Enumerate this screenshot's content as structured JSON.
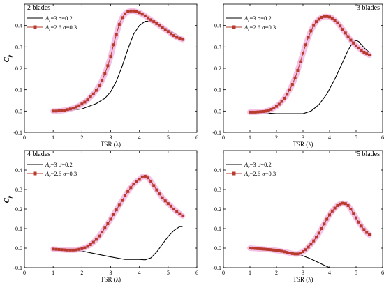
{
  "chart_data": [
    {
      "type": "line",
      "title": "2 blades",
      "xlabel": "TSR (λ)",
      "ylabel": "Cp",
      "xlim": [
        0,
        6
      ],
      "ylim": [
        -0.1,
        0.5
      ],
      "xticks": [
        "0",
        "1",
        "2",
        "3",
        "4",
        "5",
        "6"
      ],
      "yticks": [
        "-0.1",
        "0.0",
        "0.1",
        "0.2",
        "0.3",
        "0.4"
      ],
      "legend_position": "top-left",
      "series": [
        {
          "name": "Ar=3 σ=0.2",
          "color": "#000000",
          "marker": "none",
          "x": [
            1.0,
            1.5,
            2.0,
            2.5,
            2.8,
            3.0,
            3.2,
            3.4,
            3.6,
            3.8,
            4.0,
            4.2,
            4.4,
            4.6,
            4.8,
            5.0,
            5.2,
            5.5
          ],
          "y": [
            0.0,
            0.002,
            0.01,
            0.035,
            0.06,
            0.09,
            0.14,
            0.21,
            0.29,
            0.36,
            0.4,
            0.42,
            0.42,
            0.41,
            0.395,
            0.38,
            0.365,
            0.34
          ]
        },
        {
          "name": "Ar=2.6 σ=0.3",
          "color": "#b83a2c",
          "marker": "square",
          "x": [
            1.0,
            1.1,
            1.2,
            1.3,
            1.4,
            1.5,
            1.6,
            1.7,
            1.8,
            1.9,
            2.0,
            2.1,
            2.2,
            2.3,
            2.4,
            2.5,
            2.6,
            2.7,
            2.8,
            2.9,
            3.0,
            3.1,
            3.2,
            3.3,
            3.4,
            3.5,
            3.6,
            3.7,
            3.8,
            3.9,
            4.0,
            4.1,
            4.2,
            4.3,
            4.4,
            4.5,
            4.6,
            4.7,
            4.8,
            4.9,
            5.0,
            5.1,
            5.2,
            5.3,
            5.4,
            5.5
          ],
          "y": [
            0.0,
            0.0,
            0.001,
            0.002,
            0.004,
            0.007,
            0.01,
            0.014,
            0.019,
            0.025,
            0.033,
            0.042,
            0.053,
            0.066,
            0.08,
            0.097,
            0.118,
            0.143,
            0.175,
            0.212,
            0.255,
            0.31,
            0.36,
            0.405,
            0.437,
            0.455,
            0.465,
            0.468,
            0.468,
            0.465,
            0.46,
            0.453,
            0.445,
            0.436,
            0.427,
            0.418,
            0.409,
            0.4,
            0.391,
            0.381,
            0.372,
            0.362,
            0.353,
            0.345,
            0.34,
            0.335
          ]
        }
      ]
    },
    {
      "type": "line",
      "title": "3 blades",
      "xlabel": "TSR (λ)",
      "ylabel": "",
      "xlim": [
        0,
        6
      ],
      "ylim": [
        -0.1,
        0.5
      ],
      "xticks": [
        "0",
        "1",
        "2",
        "3",
        "4",
        "5",
        "6"
      ],
      "yticks": [
        "-0.1",
        "0.0",
        "0.1",
        "0.2",
        "0.3",
        "0.4"
      ],
      "legend_position": "top-left",
      "series": [
        {
          "name": "Ar=3 σ=0.2",
          "color": "#000000",
          "marker": "none",
          "x": [
            1.0,
            1.5,
            2.0,
            2.5,
            3.0,
            3.3,
            3.6,
            3.9,
            4.2,
            4.5,
            4.7,
            4.9,
            5.0,
            5.1,
            5.2,
            5.35,
            5.5
          ],
          "y": [
            -0.005,
            -0.008,
            -0.012,
            -0.012,
            -0.012,
            0.0,
            0.03,
            0.08,
            0.15,
            0.23,
            0.285,
            0.325,
            0.33,
            0.325,
            0.31,
            0.29,
            0.275
          ]
        },
        {
          "name": "Ar=2.6 σ=0.3",
          "color": "#b83a2c",
          "marker": "square",
          "x": [
            1.0,
            1.1,
            1.2,
            1.3,
            1.4,
            1.5,
            1.6,
            1.7,
            1.8,
            1.9,
            2.0,
            2.1,
            2.2,
            2.3,
            2.4,
            2.5,
            2.6,
            2.7,
            2.8,
            2.9,
            3.0,
            3.1,
            3.2,
            3.3,
            3.4,
            3.5,
            3.6,
            3.7,
            3.8,
            3.9,
            4.0,
            4.1,
            4.2,
            4.3,
            4.4,
            4.5,
            4.6,
            4.7,
            4.8,
            4.9,
            5.0,
            5.1,
            5.2,
            5.3,
            5.4,
            5.5
          ],
          "y": [
            -0.005,
            -0.005,
            -0.005,
            -0.004,
            -0.003,
            -0.002,
            0.0,
            0.003,
            0.008,
            0.014,
            0.022,
            0.032,
            0.045,
            0.06,
            0.078,
            0.1,
            0.125,
            0.155,
            0.19,
            0.23,
            0.27,
            0.31,
            0.345,
            0.375,
            0.4,
            0.418,
            0.43,
            0.438,
            0.442,
            0.442,
            0.44,
            0.435,
            0.425,
            0.413,
            0.398,
            0.382,
            0.365,
            0.348,
            0.332,
            0.318,
            0.305,
            0.295,
            0.285,
            0.275,
            0.268,
            0.262
          ]
        }
      ]
    },
    {
      "type": "line",
      "title": "4 blades",
      "xlabel": "TSR (λ)",
      "ylabel": "Cp",
      "xlim": [
        0,
        6
      ],
      "ylim": [
        -0.1,
        0.5
      ],
      "xticks": [
        "0",
        "1",
        "2",
        "3",
        "4",
        "5",
        "6"
      ],
      "yticks": [
        "-0.1",
        "0.0",
        "0.1",
        "0.2",
        "0.3",
        "0.4"
      ],
      "legend_position": "top-left",
      "series": [
        {
          "name": "Ar=3 σ=0.2",
          "color": "#000000",
          "marker": "none",
          "x": [
            1.0,
            1.5,
            2.0,
            2.5,
            3.0,
            3.5,
            4.0,
            4.2,
            4.4,
            4.6,
            4.8,
            5.0,
            5.2,
            5.4,
            5.5
          ],
          "y": [
            0.0,
            -0.01,
            -0.015,
            -0.03,
            -0.045,
            -0.058,
            -0.058,
            -0.06,
            -0.05,
            -0.02,
            0.02,
            0.06,
            0.09,
            0.11,
            0.11
          ]
        },
        {
          "name": "Ar=2.6 σ=0.3",
          "color": "#b83a2c",
          "marker": "square",
          "x": [
            1.0,
            1.1,
            1.2,
            1.3,
            1.4,
            1.5,
            1.6,
            1.7,
            1.8,
            1.9,
            2.0,
            2.1,
            2.2,
            2.3,
            2.4,
            2.5,
            2.6,
            2.7,
            2.8,
            2.9,
            3.0,
            3.1,
            3.2,
            3.3,
            3.4,
            3.5,
            3.6,
            3.7,
            3.8,
            3.9,
            4.0,
            4.1,
            4.2,
            4.3,
            4.4,
            4.5,
            4.6,
            4.7,
            4.8,
            4.9,
            5.0,
            5.1,
            5.2,
            5.3,
            5.4,
            5.5
          ],
          "y": [
            -0.005,
            -0.006,
            -0.007,
            -0.008,
            -0.009,
            -0.01,
            -0.01,
            -0.01,
            -0.009,
            -0.006,
            -0.003,
            0.002,
            0.009,
            0.018,
            0.03,
            0.045,
            0.062,
            0.082,
            0.103,
            0.125,
            0.148,
            0.172,
            0.196,
            0.22,
            0.244,
            0.268,
            0.29,
            0.31,
            0.328,
            0.342,
            0.352,
            0.365,
            0.368,
            0.36,
            0.343,
            0.32,
            0.298,
            0.278,
            0.258,
            0.242,
            0.228,
            0.215,
            0.2,
            0.188,
            0.176,
            0.165
          ]
        }
      ]
    },
    {
      "type": "line",
      "title": "5 blades",
      "xlabel": "TSR (λ)",
      "ylabel": "",
      "xlim": [
        0,
        6
      ],
      "ylim": [
        -0.1,
        0.5
      ],
      "xticks": [
        "0",
        "1",
        "2",
        "3",
        "4",
        "5",
        "6"
      ],
      "yticks": [
        "-0.1",
        "0.0",
        "0.1",
        "0.2",
        "0.3",
        "0.4"
      ],
      "legend_position": "top-left",
      "series": [
        {
          "name": "Ar=3 σ=0.2",
          "color": "#000000",
          "marker": "none",
          "x": [
            1.0,
            1.5,
            2.0,
            2.5,
            2.8,
            3.0,
            3.2,
            3.4,
            3.6,
            3.8,
            4.0
          ],
          "y": [
            0.0,
            -0.005,
            -0.012,
            -0.022,
            -0.03,
            -0.04,
            -0.05,
            -0.062,
            -0.075,
            -0.088,
            -0.1
          ]
        },
        {
          "name": "Ar=2.6 σ=0.3",
          "color": "#b83a2c",
          "marker": "square",
          "x": [
            1.0,
            1.1,
            1.2,
            1.3,
            1.4,
            1.5,
            1.6,
            1.7,
            1.8,
            1.9,
            2.0,
            2.1,
            2.2,
            2.3,
            2.4,
            2.5,
            2.6,
            2.7,
            2.8,
            2.9,
            3.0,
            3.1,
            3.2,
            3.3,
            3.4,
            3.5,
            3.6,
            3.7,
            3.8,
            3.9,
            4.0,
            4.1,
            4.2,
            4.3,
            4.4,
            4.5,
            4.6,
            4.7,
            4.8,
            4.9,
            5.0,
            5.1,
            5.2,
            5.3,
            5.4,
            5.5
          ],
          "y": [
            0.0,
            -0.001,
            -0.002,
            -0.003,
            -0.004,
            -0.005,
            -0.006,
            -0.007,
            -0.008,
            -0.01,
            -0.012,
            -0.014,
            -0.016,
            -0.019,
            -0.022,
            -0.025,
            -0.028,
            -0.03,
            -0.03,
            -0.025,
            -0.018,
            -0.008,
            0.005,
            0.02,
            0.037,
            0.056,
            0.077,
            0.1,
            0.124,
            0.148,
            0.17,
            0.19,
            0.205,
            0.218,
            0.226,
            0.23,
            0.228,
            0.218,
            0.2,
            0.178,
            0.155,
            0.133,
            0.113,
            0.095,
            0.08,
            0.068
          ]
        }
      ]
    }
  ]
}
